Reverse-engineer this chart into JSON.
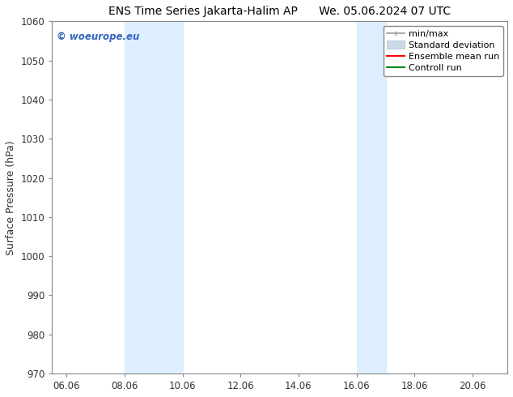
{
  "title_left": "ENS Time Series Jakarta-Halim AP",
  "title_right": "We. 05.06.2024 07 UTC",
  "ylabel": "Surface Pressure (hPa)",
  "ylim": [
    970,
    1060
  ],
  "yticks": [
    970,
    980,
    990,
    1000,
    1010,
    1020,
    1030,
    1040,
    1050,
    1060
  ],
  "xlim_start": 5.5,
  "xlim_end": 21.2,
  "xtick_labels": [
    "06.06",
    "08.06",
    "10.06",
    "12.06",
    "14.06",
    "16.06",
    "18.06",
    "20.06"
  ],
  "xtick_positions": [
    6.0,
    8.0,
    10.0,
    12.0,
    14.0,
    16.0,
    18.0,
    20.0
  ],
  "shaded_regions": [
    {
      "xmin": 8.0,
      "xmax": 10.0,
      "color": "#ddeeff"
    },
    {
      "xmin": 16.0,
      "xmax": 17.0,
      "color": "#ddeeff"
    }
  ],
  "watermark_text": "© woeurope.eu",
  "watermark_color": "#3366bb",
  "background_color": "#ffffff",
  "legend_entries": [
    {
      "label": "min/max",
      "color": "#999999",
      "linestyle": "-",
      "linewidth": 1.2
    },
    {
      "label": "Standard deviation",
      "color": "#ccd9e8",
      "linestyle": "-",
      "linewidth": 8
    },
    {
      "label": "Ensemble mean run",
      "color": "#ff0000",
      "linestyle": "-",
      "linewidth": 1.5
    },
    {
      "label": "Controll run",
      "color": "#008800",
      "linestyle": "-",
      "linewidth": 1.5
    }
  ],
  "spine_color": "#888888",
  "tick_color": "#333333",
  "grid_color": "#dddddd",
  "title_fontsize": 10,
  "axis_label_fontsize": 9,
  "tick_fontsize": 8.5,
  "legend_fontsize": 8
}
